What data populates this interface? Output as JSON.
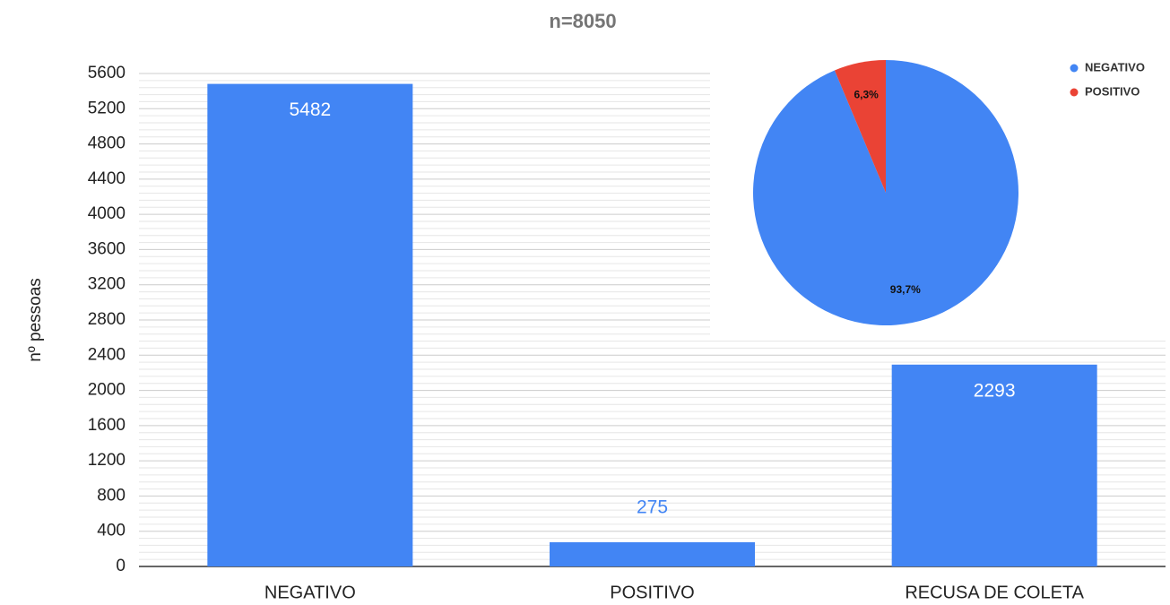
{
  "chart_data": [
    {
      "type": "bar",
      "title": "n=8050",
      "y_label": "nº pessoas",
      "categories": [
        "NEGATIVO",
        "POSITIVO",
        "RECUSA DE COLETA"
      ],
      "values": [
        5482,
        275,
        2293
      ],
      "color": "#4285f4",
      "ylim": [
        0,
        5600
      ],
      "yticks": [
        0,
        400,
        800,
        1200,
        1600,
        2000,
        2400,
        2800,
        3200,
        3600,
        4000,
        4400,
        4800,
        5200,
        5600
      ],
      "grid": true
    },
    {
      "type": "pie",
      "categories": [
        "NEGATIVO",
        "POSITIVO"
      ],
      "values": [
        93.7,
        6.3
      ],
      "value_labels": [
        "93,7%",
        "6,3%"
      ],
      "colors": [
        "#4285f4",
        "#ea4335"
      ],
      "legend": "top-right"
    }
  ]
}
